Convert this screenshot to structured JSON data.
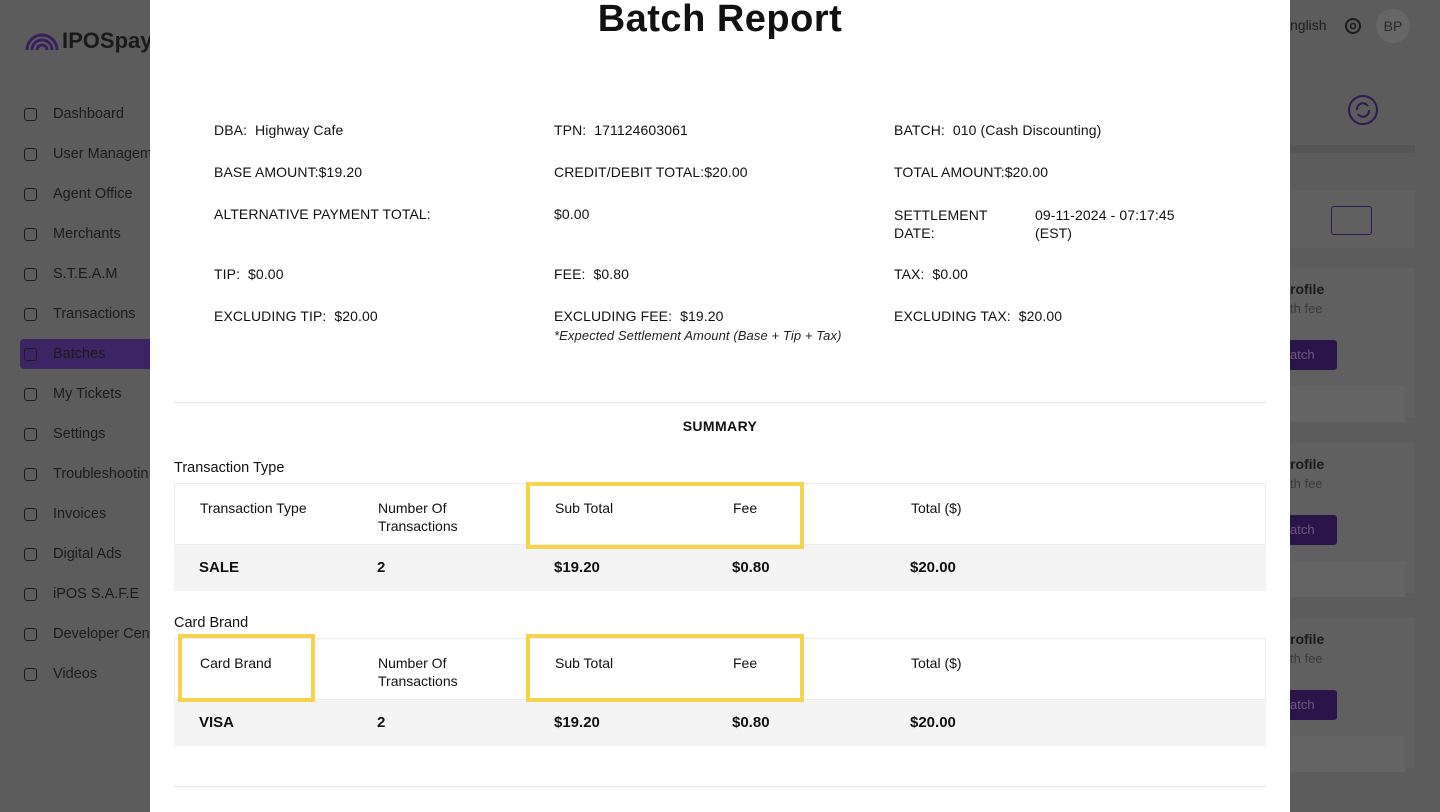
{
  "sidebar": {
    "logo": "IPOSpay",
    "nav": [
      "Dashboard",
      "User Managem",
      "Agent Office",
      "Merchants",
      "S.T.E.A.M",
      "Transactions",
      "Batches",
      "My Tickets",
      "Settings",
      "Troubleshootin",
      "Invoices",
      "Digital Ads",
      "iPOS S.A.F.E",
      "Developer Cen",
      "Videos"
    ]
  },
  "topbar": {
    "language": "nglish",
    "avatar": "BP"
  },
  "background_cards": [
    {
      "title": "rofile",
      "subtitle": "th fee",
      "button": "atch"
    },
    {
      "title": "rofile",
      "subtitle": "th fee",
      "button": "atch"
    },
    {
      "title": "rofile",
      "subtitle": "th fee",
      "button": "atch"
    }
  ],
  "modal": {
    "title": "Batch Report",
    "info": {
      "rows": [
        [
          "DBA:  Highway Cafe",
          "TPN:  171124603061",
          "BATCH:  010 (Cash Discounting)"
        ],
        [
          "BASE AMOUNT:$19.20",
          "CREDIT/DEBIT TOTAL:$20.00",
          "TOTAL AMOUNT:$20.00"
        ],
        [
          "ALTERNATIVE PAYMENT TOTAL:",
          "$0.00"
        ],
        [
          "TIP:  $0.00",
          "FEE:  $0.80",
          "TAX:  $0.00"
        ],
        [
          "EXCLUDING TIP:  $20.00",
          "EXCLUDING FEE:  $19.20",
          "EXCLUDING TAX:  $20.00"
        ]
      ],
      "settlement": {
        "label": "SETTLEMENT DATE:",
        "value": "09-11-2024 - 07:17:45 (EST)"
      },
      "note": "*Expected Settlement Amount (Base + Tip + Tax)"
    },
    "summary": "SUMMARY",
    "tables": [
      {
        "title": "Transaction Type",
        "headers": [
          "Transaction Type",
          "Number Of Transactions",
          "Sub Total",
          "Fee",
          "Total ($)"
        ],
        "rows": [
          [
            "SALE",
            "2",
            "$19.20",
            "$0.80",
            "$20.00"
          ]
        ]
      },
      {
        "title": "Card Brand",
        "headers": [
          "Card Brand",
          "Number Of Transactions",
          "Sub Total",
          "Fee",
          "Total ($)"
        ],
        "rows": [
          [
            "VISA",
            "2",
            "$19.20",
            "$0.80",
            "$20.00"
          ]
        ]
      }
    ]
  }
}
